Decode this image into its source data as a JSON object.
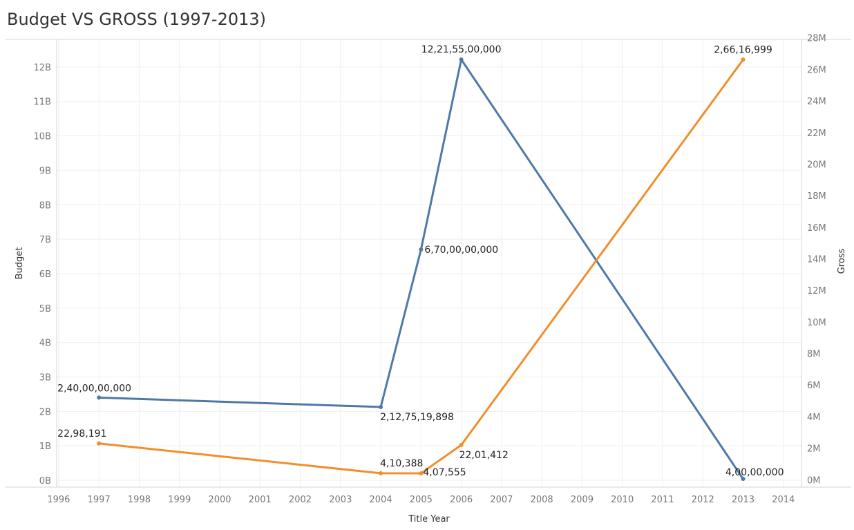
{
  "chart_data": {
    "type": "line",
    "title": "Budget VS GROSS (1997-2013)",
    "xlabel": "Title Year",
    "ylabel_left": "Budget",
    "ylabel_right": "Gross",
    "x_ticks": [
      "1996",
      "1997",
      "1998",
      "1999",
      "2000",
      "2001",
      "2002",
      "2003",
      "2004",
      "2005",
      "2006",
      "2007",
      "2008",
      "2009",
      "2010",
      "2011",
      "2012",
      "2013",
      "2014"
    ],
    "y_left_ticks": [
      "0B",
      "1B",
      "2B",
      "3B",
      "4B",
      "5B",
      "6B",
      "7B",
      "8B",
      "9B",
      "10B",
      "11B",
      "12B"
    ],
    "y_right_ticks": [
      "0M",
      "2M",
      "4M",
      "6M",
      "8M",
      "10M",
      "12M",
      "14M",
      "16M",
      "18M",
      "20M",
      "22M",
      "24M",
      "26M",
      "28M"
    ],
    "xlim": [
      1995.95,
      2014.45
    ],
    "ylim_left": [
      -200000000,
      12800000000
    ],
    "ylim_right": [
      -470000,
      27900000
    ],
    "grid": true,
    "series": [
      {
        "name": "Budget",
        "axis": "left",
        "color": "#4e79a7",
        "points": [
          {
            "x": 1997,
            "y": 2400000000,
            "label": "2,40,00,00,000",
            "label_pos": "above"
          },
          {
            "x": 2004,
            "y": 2127519898,
            "label": "2,12,75,19,898",
            "label_pos": "below"
          },
          {
            "x": 2005,
            "y": 6700000000,
            "label": "6,70,00,00,000",
            "label_pos": "right"
          },
          {
            "x": 2006,
            "y": 12215500000,
            "label": "12,21,55,00,000",
            "label_pos": "above"
          },
          {
            "x": 2013,
            "y": 40000000,
            "label": "4,00,00,000",
            "label_pos": "above-left"
          }
        ]
      },
      {
        "name": "Gross",
        "axis": "right",
        "color": "#f28e2b",
        "points": [
          {
            "x": 1997,
            "y": 2298191,
            "label": "22,98,191",
            "label_pos": "above"
          },
          {
            "x": 2004,
            "y": 410388,
            "label": "4,10,388",
            "label_pos": "above"
          },
          {
            "x": 2005,
            "y": 407555,
            "label": "4,07,555",
            "label_pos": "below"
          },
          {
            "x": 2006,
            "y": 2201412,
            "label": "22,01,412",
            "label_pos": "below"
          },
          {
            "x": 2013,
            "y": 26616999,
            "label": "2,66,16,999",
            "label_pos": "above"
          }
        ]
      }
    ]
  }
}
